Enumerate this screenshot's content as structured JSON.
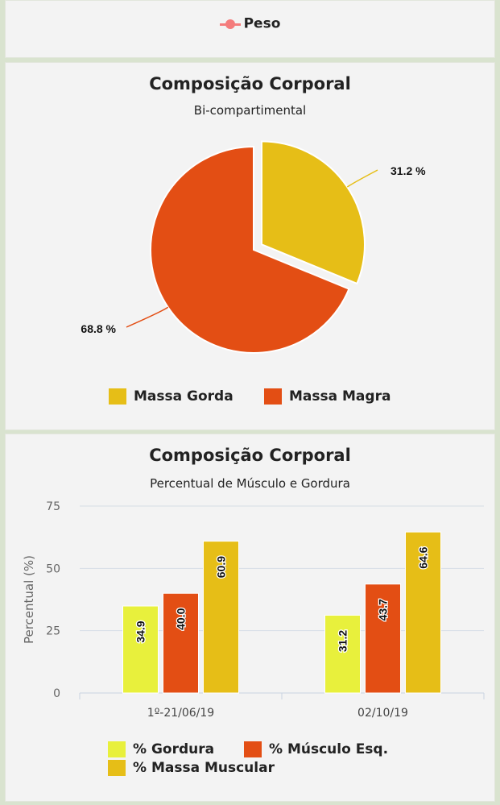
{
  "top_legend": {
    "label": "Peso",
    "color": "#f47c7c"
  },
  "chart_data": [
    {
      "type": "pie",
      "title": "Composição Corporal",
      "subtitle": "Bi-compartimental",
      "labels": [
        "Massa Gorda",
        "Massa Magra"
      ],
      "values": [
        31.2,
        68.8
      ],
      "data_labels": [
        "31.2 %",
        "68.8 %"
      ],
      "colors": [
        "#e6be17",
        "#e34e14"
      ],
      "exploded": "Massa Gorda",
      "legend_position": "bottom"
    },
    {
      "type": "bar",
      "title": "Composição Corporal",
      "subtitle": "Percentual de Músculo e Gordura",
      "ylabel": "Percentual (%)",
      "categories": [
        "1º-21/06/19",
        "02/10/19"
      ],
      "series": [
        {
          "name": "% Gordura",
          "values": [
            34.9,
            31.2
          ],
          "color": "#e8f03c"
        },
        {
          "name": "% Músculo Esq.",
          "values": [
            40.0,
            43.7
          ],
          "color": "#e34e14"
        },
        {
          "name": "% Massa Muscular",
          "values": [
            60.9,
            64.6
          ],
          "color": "#e6be17"
        }
      ],
      "ylim": [
        0,
        75
      ],
      "yticks": [
        "0",
        "25",
        "50",
        "75"
      ],
      "grid": true,
      "legend_position": "bottom"
    }
  ]
}
